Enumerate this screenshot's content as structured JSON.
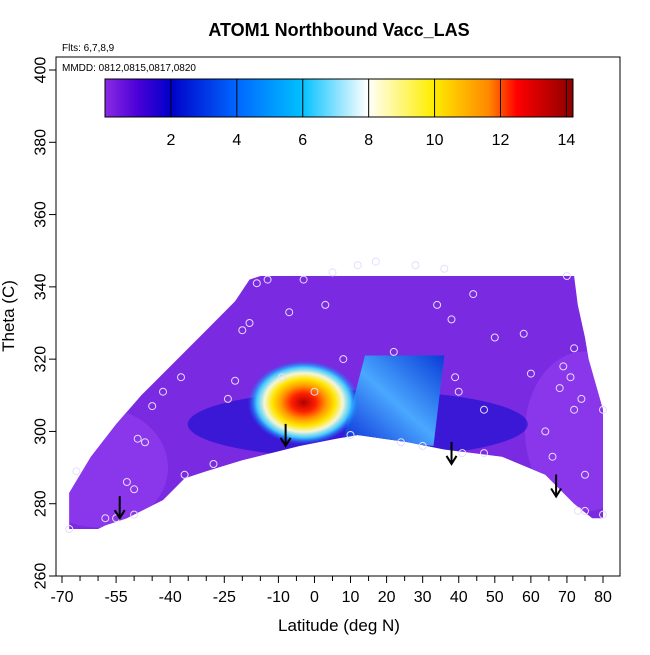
{
  "chart_data": {
    "type": "heatmap",
    "title": "ATOM1 Northbound Vacc_LAS",
    "annotations": {
      "flights": "Flts: 6,7,8,9",
      "dates": "MMDD: 0812,0815,0817,0820"
    },
    "xlabel": "Latitude (deg N)",
    "ylabel": "Theta (C)",
    "xlim": [
      -70,
      80
    ],
    "ylim": [
      260,
      400
    ],
    "x_ticks_labeled": [
      -70,
      -55,
      -40,
      -25,
      -10,
      0,
      10,
      20,
      30,
      40,
      50,
      60,
      70,
      80
    ],
    "x_tick_labels": [
      "-70",
      "-55",
      "-40",
      "-25",
      "-10",
      "0",
      "10",
      "20",
      "30",
      "40",
      "50",
      "60",
      "70",
      "80"
    ],
    "x_ticks_minor": [
      -65,
      -60,
      -50,
      -45,
      -35,
      -30,
      -20,
      -15,
      -5,
      5,
      15,
      25,
      35,
      45,
      55,
      65,
      75
    ],
    "y_ticks": [
      260,
      280,
      300,
      320,
      340,
      360,
      380,
      400
    ],
    "y_tick_labels": [
      "260",
      "280",
      "300",
      "320",
      "340",
      "360",
      "380",
      "400"
    ],
    "colorbar": {
      "range": [
        0,
        14.2
      ],
      "ticks": [
        2,
        4,
        6,
        8,
        10,
        12,
        14
      ],
      "tick_labels": [
        "2",
        "4",
        "6",
        "8",
        "10",
        "12",
        "14"
      ],
      "colors": [
        "#8a2be2",
        "#0000c8",
        "#0088ff",
        "#00c8ff",
        "#ffffff",
        "#ffee00",
        "#ff8800",
        "#ff0000",
        "#8b0000"
      ]
    },
    "hotspot": {
      "center_lat": -3,
      "center_theta": 308,
      "max_value": 13
    },
    "secondary_feature": {
      "lat_range": [
        10,
        30
      ],
      "theta_range": [
        298,
        321
      ],
      "value": 6
    },
    "arrows": [
      {
        "lat": -54,
        "theta": 276
      },
      {
        "lat": -8,
        "theta": 296
      },
      {
        "lat": 38,
        "theta": 291
      },
      {
        "lat": 67,
        "theta": 282
      }
    ],
    "sample_points": [
      [
        -68,
        273
      ],
      [
        -66,
        289
      ],
      [
        -58,
        276
      ],
      [
        -55,
        276
      ],
      [
        -52,
        286
      ],
      [
        -50,
        277
      ],
      [
        -50,
        284
      ],
      [
        -49,
        298
      ],
      [
        -47,
        297
      ],
      [
        -45,
        307
      ],
      [
        -42,
        311
      ],
      [
        -37,
        315
      ],
      [
        -36,
        288
      ],
      [
        -28,
        291
      ],
      [
        -24,
        309
      ],
      [
        -22,
        314
      ],
      [
        -20,
        328
      ],
      [
        -18,
        330
      ],
      [
        -16,
        341
      ],
      [
        -13,
        342
      ],
      [
        -9,
        315
      ],
      [
        -7,
        333
      ],
      [
        -3,
        342
      ],
      [
        0,
        311
      ],
      [
        3,
        335
      ],
      [
        5,
        344
      ],
      [
        8,
        320
      ],
      [
        10,
        299
      ],
      [
        12,
        346
      ],
      [
        17,
        347
      ],
      [
        22,
        322
      ],
      [
        24,
        297
      ],
      [
        28,
        346
      ],
      [
        30,
        296
      ],
      [
        34,
        335
      ],
      [
        36,
        345
      ],
      [
        38,
        331
      ],
      [
        39,
        315
      ],
      [
        40,
        311
      ],
      [
        41,
        294
      ],
      [
        44,
        338
      ],
      [
        47,
        294
      ],
      [
        47,
        306
      ],
      [
        50,
        326
      ],
      [
        58,
        327
      ],
      [
        60,
        316
      ],
      [
        64,
        300
      ],
      [
        66,
        293
      ],
      [
        68,
        312
      ],
      [
        69,
        318
      ],
      [
        70,
        343
      ],
      [
        71,
        315
      ],
      [
        72,
        323
      ],
      [
        72,
        306
      ],
      [
        73,
        278
      ],
      [
        74,
        309
      ],
      [
        75,
        288
      ],
      [
        75,
        278
      ],
      [
        80,
        306
      ],
      [
        80,
        277
      ]
    ]
  }
}
